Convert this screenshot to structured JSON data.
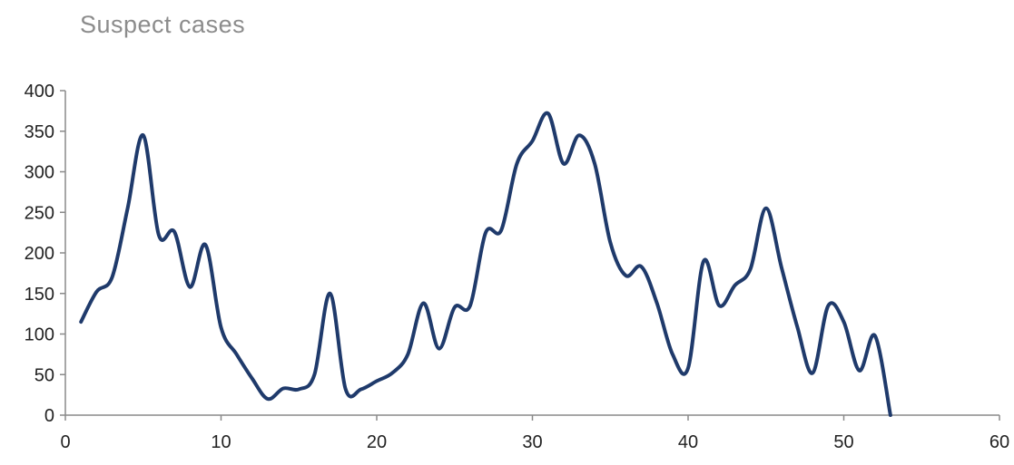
{
  "chart_data": {
    "type": "line",
    "title": "Suspect cases",
    "xlabel": "",
    "ylabel": "",
    "xlim": [
      0,
      60
    ],
    "ylim": [
      0,
      400
    ],
    "x_ticks": [
      0,
      10,
      20,
      30,
      40,
      50,
      60
    ],
    "y_ticks": [
      0,
      50,
      100,
      150,
      200,
      250,
      300,
      350,
      400
    ],
    "grid": false,
    "legend": "none",
    "line_color": "#1f3a6b",
    "series": [
      {
        "x": [
          1,
          2,
          3,
          4,
          5,
          6,
          7,
          8,
          9,
          10,
          11,
          12,
          13,
          14,
          15,
          16,
          17,
          18,
          19,
          20,
          21,
          22,
          23,
          24,
          25,
          26,
          27,
          28,
          29,
          30,
          31,
          32,
          33,
          34,
          35,
          36,
          37,
          38,
          39,
          40,
          41,
          42,
          43,
          44,
          45,
          46,
          47,
          48,
          49,
          50,
          51,
          52,
          53
        ],
        "y": [
          115,
          152,
          170,
          255,
          345,
          222,
          226,
          158,
          210,
          108,
          75,
          45,
          20,
          33,
          32,
          50,
          150,
          32,
          32,
          42,
          52,
          75,
          138,
          82,
          133,
          135,
          225,
          228,
          310,
          338,
          372,
          310,
          345,
          310,
          213,
          172,
          183,
          138,
          75,
          58,
          190,
          135,
          160,
          180,
          255,
          182,
          110,
          52,
          135,
          115,
          55,
          98,
          0
        ]
      }
    ]
  }
}
